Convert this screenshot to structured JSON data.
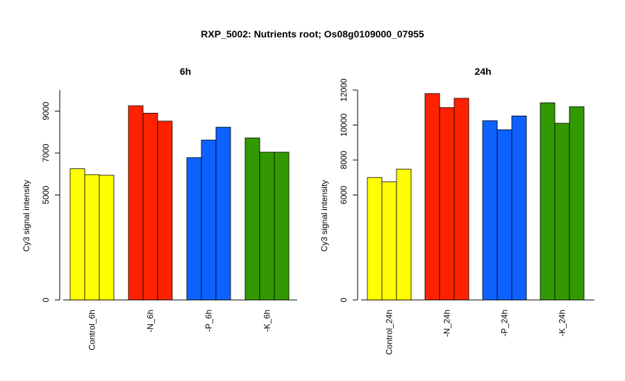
{
  "title": "RXP_5002: Nutrients root; Os08g0109000_07955",
  "colors": {
    "control": "#ffff00",
    "minus_n": "#ff2200",
    "minus_p": "#0d62ff",
    "minus_k": "#339900"
  },
  "chart_data": [
    {
      "type": "bar",
      "title": "6h",
      "ylabel": "Cy3 signal intensity",
      "xlabel": "",
      "ylim": [
        0,
        10000
      ],
      "yticks": [
        0,
        5000,
        7000,
        9000
      ],
      "grid": false,
      "categories": [
        "Control_6h",
        "-N_6h",
        "-P_6h",
        "-K_6h"
      ],
      "groups": [
        {
          "category": "Control_6h",
          "color_key": "control",
          "values": [
            6250,
            5970,
            5940
          ]
        },
        {
          "category": "-N_6h",
          "color_key": "minus_n",
          "values": [
            9250,
            8900,
            8520
          ]
        },
        {
          "category": "-P_6h",
          "color_key": "minus_p",
          "values": [
            6780,
            7620,
            8230
          ]
        },
        {
          "category": "-K_6h",
          "color_key": "minus_k",
          "values": [
            7720,
            7040,
            7040
          ]
        }
      ]
    },
    {
      "type": "bar",
      "title": "24h",
      "ylabel": "Cy3 signal intensity",
      "xlabel": "",
      "ylim": [
        0,
        12000
      ],
      "yticks": [
        0,
        6000,
        8000,
        10000,
        12000
      ],
      "grid": false,
      "categories": [
        "Control_24h",
        "-N_24h",
        "-P_24h",
        "-K_24h"
      ],
      "groups": [
        {
          "category": "Control_24h",
          "color_key": "control",
          "values": [
            7000,
            6750,
            7480
          ]
        },
        {
          "category": "-N_24h",
          "color_key": "minus_n",
          "values": [
            11800,
            11000,
            11530
          ]
        },
        {
          "category": "-P_24h",
          "color_key": "minus_p",
          "values": [
            10250,
            9730,
            10520
          ]
        },
        {
          "category": "-K_24h",
          "color_key": "minus_k",
          "values": [
            11270,
            10100,
            11050
          ]
        }
      ]
    }
  ]
}
